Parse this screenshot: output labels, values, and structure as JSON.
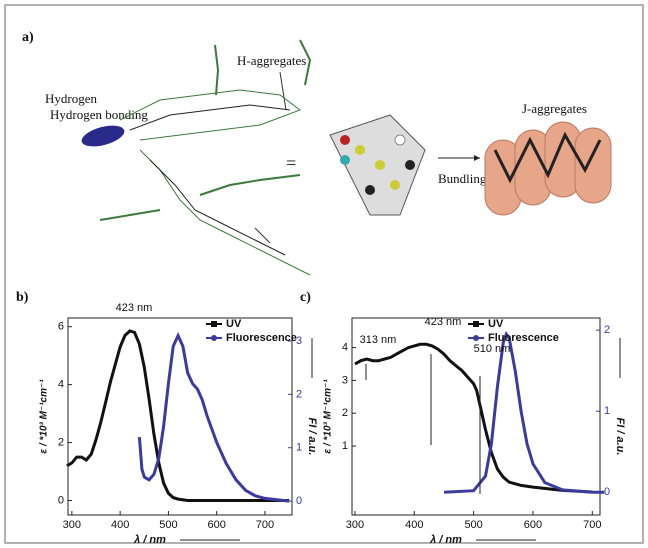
{
  "figure": {
    "panel_a": {
      "label": "a)",
      "h_aggregates": "H-aggregates",
      "hydrogen_bonding": "Hydrogen bonding",
      "equals": "=",
      "bundling": "Bundling",
      "j_aggregates": "J-aggregates"
    }
  },
  "chart_data": [
    {
      "type": "line",
      "panel_label": "b)",
      "xlabel": "λ / nm",
      "ylabel": "ε / *10³ M⁻¹cm⁻¹",
      "y2label": "FI / a.u.",
      "xlim": [
        292,
        756
      ],
      "xticks": [
        300,
        400,
        500,
        600,
        700
      ],
      "ylim": [
        -0.5,
        6.3
      ],
      "yticks": [
        0,
        2,
        4,
        6
      ],
      "y2lim": [
        -0.26,
        3.43
      ],
      "y2ticks": [
        0,
        1,
        2,
        3
      ],
      "annotations": [
        "423 nm"
      ],
      "series": [
        {
          "name": "UV",
          "color": "#111111",
          "x": [
            290,
            300,
            310,
            320,
            330,
            340,
            350,
            360,
            370,
            380,
            390,
            400,
            410,
            420,
            430,
            440,
            450,
            460,
            470,
            480,
            490,
            500,
            510,
            520,
            540,
            600,
            750
          ],
          "values": [
            1.2,
            1.3,
            1.5,
            1.5,
            1.4,
            1.6,
            2.1,
            2.7,
            3.4,
            4.1,
            4.7,
            5.3,
            5.7,
            5.85,
            5.8,
            5.4,
            4.6,
            3.5,
            2.3,
            1.3,
            0.6,
            0.25,
            0.1,
            0.05,
            0,
            0,
            0
          ]
        },
        {
          "name": "Fluorescence",
          "color": "#3a3aa0",
          "axis": "y2",
          "x": [
            440,
            445,
            450,
            460,
            470,
            480,
            490,
            500,
            510,
            520,
            530,
            540,
            550,
            560,
            570,
            580,
            600,
            620,
            640,
            660,
            680,
            700,
            750
          ],
          "values": [
            1.2,
            0.6,
            0.45,
            0.4,
            0.5,
            0.8,
            1.4,
            2.2,
            2.9,
            3.1,
            2.9,
            2.4,
            2.2,
            2.1,
            1.9,
            1.6,
            1.1,
            0.7,
            0.4,
            0.2,
            0.1,
            0.05,
            0
          ]
        }
      ]
    },
    {
      "type": "line",
      "panel_label": "c)",
      "xlabel": "λ / nm",
      "ylabel": "ε / *10³ M⁻¹cm⁻¹",
      "y2label": "FI / a.u.",
      "xlim": [
        295,
        713
      ],
      "xticks": [
        300,
        400,
        500,
        600,
        700
      ],
      "ylim": [
        -1.1,
        4.9
      ],
      "yticks": [
        1,
        2,
        3,
        4
      ],
      "y2lim": [
        -0.28,
        2.15
      ],
      "y2ticks": [
        0,
        1,
        2
      ],
      "annotations": [
        "313 nm",
        "423 nm",
        "510 nm"
      ],
      "series": [
        {
          "name": "UV",
          "color": "#111111",
          "x": [
            300,
            310,
            320,
            330,
            340,
            350,
            360,
            370,
            380,
            390,
            400,
            410,
            420,
            430,
            440,
            450,
            460,
            470,
            480,
            490,
            500,
            505,
            510,
            520,
            530,
            540,
            550,
            560,
            580,
            600,
            650,
            700
          ],
          "values": [
            3.5,
            3.6,
            3.65,
            3.6,
            3.6,
            3.65,
            3.7,
            3.8,
            3.9,
            4.0,
            4.05,
            4.1,
            4.1,
            4.05,
            3.95,
            3.8,
            3.6,
            3.45,
            3.3,
            3.1,
            2.9,
            2.7,
            2.3,
            1.5,
            0.8,
            0.3,
            0.05,
            -0.1,
            -0.2,
            -0.25,
            -0.35,
            -0.4
          ]
        },
        {
          "name": "Fluorescence",
          "color": "#3a3aa0",
          "axis": "y2",
          "x": [
            450,
            500,
            520,
            530,
            540,
            550,
            555,
            560,
            570,
            580,
            590,
            600,
            620,
            650,
            700,
            720
          ],
          "values": [
            0,
            0.02,
            0.2,
            0.6,
            1.3,
            1.85,
            1.95,
            1.9,
            1.5,
            1.0,
            0.6,
            0.35,
            0.12,
            0.03,
            0,
            0
          ]
        }
      ]
    }
  ]
}
